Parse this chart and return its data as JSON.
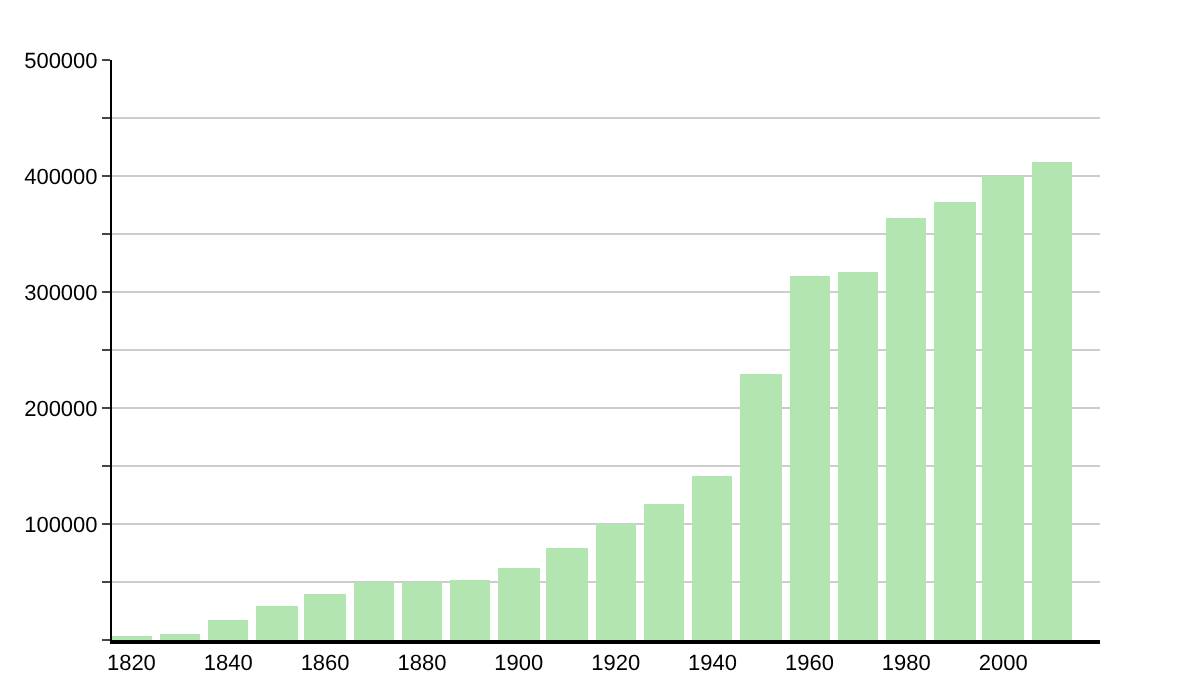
{
  "chart_data": {
    "type": "bar",
    "x": [
      1820,
      1830,
      1840,
      1850,
      1860,
      1870,
      1880,
      1890,
      1900,
      1910,
      1920,
      1930,
      1940,
      1950,
      1960,
      1970,
      1980,
      1990,
      2000,
      2010
    ],
    "values": [
      2000,
      5000,
      17000,
      29000,
      40000,
      50000,
      50000,
      51000,
      62000,
      79000,
      100000,
      117000,
      141000,
      230000,
      313000,
      317000,
      363000,
      377000,
      400000,
      412000
    ],
    "color": "#b2e5b0",
    "xlim": [
      1816,
      2020
    ],
    "xticks": [
      1820,
      1840,
      1860,
      1880,
      1900,
      1920,
      1940,
      1960,
      1980,
      2000
    ],
    "ylim": [
      0,
      500000
    ],
    "yticks": [
      {
        "value": 0,
        "label": null
      },
      {
        "value": 50000,
        "label": null
      },
      100000,
      {
        "value": 150000,
        "label": null
      },
      200000,
      {
        "value": 250000,
        "label": null
      },
      300000,
      {
        "value": 350000,
        "label": null
      },
      400000,
      {
        "value": 450000,
        "label": null
      },
      500000
    ],
    "grid": "y"
  }
}
